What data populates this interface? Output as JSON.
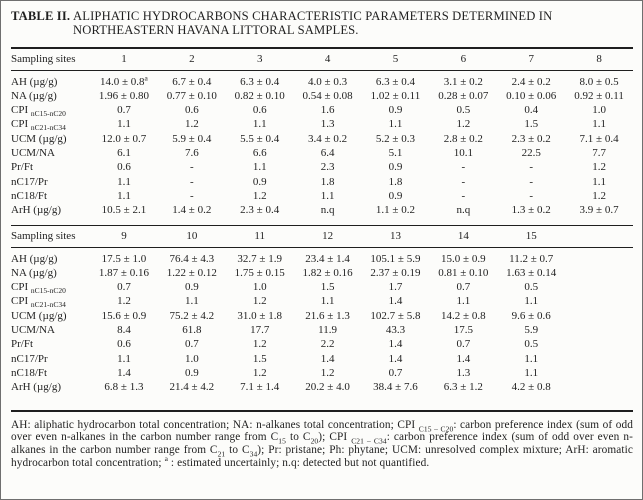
{
  "page": {
    "background": "#fcfcfa",
    "text_color": "#1f1f1f",
    "border_color": "#6f6f6f"
  },
  "title": {
    "label": "TABLE II.",
    "caption": "ALIPHATIC HYDROCARBONS CHARACTERISTIC PARAMETERS DETERMINED IN NORTHEASTERN HAVANA LITTORAL SAMPLES."
  },
  "tables": [
    {
      "header_label": "Sampling sites",
      "columns": [
        "1",
        "2",
        "3",
        "4",
        "5",
        "6",
        "7",
        "8"
      ],
      "rows": [
        {
          "label": "AH (µg/g)",
          "values": [
            "14.0 ± 0.8^{a}",
            "6.7 ± 0.4",
            "6.3 ± 0.4",
            "4.0 ± 0.3",
            "6.3 ± 0.4",
            "3.1 ± 0.2",
            "2.4 ± 0.2",
            "8.0 ± 0.5"
          ]
        },
        {
          "label": "NA (µg/g)",
          "values": [
            "1.96 ± 0.80",
            "0.77 ± 0.10",
            "0.82 ± 0.10",
            "0.54 ± 0.08",
            "1.02 ± 0.11",
            "0.28 ± 0.07",
            "0.10 ± 0.06",
            "0.92 ± 0.11"
          ]
        },
        {
          "label": "CPI _{nC15-nC20}",
          "values": [
            "0.7",
            "0.6",
            "0.6",
            "1.6",
            "0.9",
            "0.5",
            "0.4",
            "1.0"
          ]
        },
        {
          "label": "CPI _{nC21-nC34}",
          "values": [
            "1.1",
            "1.2",
            "1.1",
            "1.3",
            "1.1",
            "1.2",
            "1.5",
            "1.1"
          ]
        },
        {
          "label": "UCM (µg/g)",
          "values": [
            "12.0 ± 0.7",
            "5.9 ± 0.4",
            "5.5 ± 0.4",
            "3.4 ± 0.2",
            "5.2 ± 0.3",
            "2.8 ± 0.2",
            "2.3 ± 0.2",
            "7.1 ± 0.4"
          ]
        },
        {
          "label": "UCM/NA",
          "values": [
            "6.1",
            "7.6",
            "6.6",
            "6.4",
            "5.1",
            "10.1",
            "22.5",
            "7.7"
          ]
        },
        {
          "label": "Pr/Ft",
          "values": [
            "0.6",
            "-",
            "1.1",
            "2.3",
            "0.9",
            "-",
            "-",
            "1.2"
          ]
        },
        {
          "label": "nC17/Pr",
          "values": [
            "1.1",
            "-",
            "0.9",
            "1.8",
            "1.8",
            "-",
            "-",
            "1.1"
          ]
        },
        {
          "label": "nC18/Ft",
          "values": [
            "1.1",
            "-",
            "1.2",
            "1.1",
            "0.9",
            "-",
            "-",
            "1.2"
          ]
        },
        {
          "label": "ArH (µg/g)",
          "values": [
            "10.5 ± 2.1",
            "1.4 ± 0.2",
            "2.3 ± 0.4",
            "n.q",
            "1.1 ± 0.2",
            "n.q",
            "1.3 ± 0.2",
            "3.9 ± 0.7"
          ]
        }
      ]
    },
    {
      "header_label": "Sampling sites",
      "columns": [
        "9",
        "10",
        "11",
        "12",
        "13",
        "14",
        "15"
      ],
      "rows": [
        {
          "label": "AH (µg/g)",
          "values": [
            "17.5 ± 1.0",
            "76.4 ± 4.3",
            "32.7 ± 1.9",
            "23.4 ± 1.4",
            "105.1 ± 5.9",
            "15.0 ± 0.9",
            "11.2 ± 0.7"
          ]
        },
        {
          "label": "NA (µg/g)",
          "values": [
            "1.87 ± 0.16",
            "1.22 ± 0.12",
            "1.75 ± 0.15",
            "1.82 ± 0.16",
            "2.37 ± 0.19",
            "0.81 ± 0.10",
            "1.63 ± 0.14"
          ]
        },
        {
          "label": "CPI _{nC15-nC20}",
          "values": [
            "0.7",
            "0.9",
            "1.0",
            "1.5",
            "1.7",
            "0.7",
            "0.5"
          ]
        },
        {
          "label": "CPI _{nC21-nC34}",
          "values": [
            "1.2",
            "1.1",
            "1.2",
            "1.1",
            "1.4",
            "1.1",
            "1.1"
          ]
        },
        {
          "label": "UCM (µg/g)",
          "values": [
            "15.6 ± 0.9",
            "75.2 ± 4.2",
            "31.0 ± 1.8",
            "21.6 ± 1.3",
            "102.7 ± 5.8",
            "14.2 ± 0.8",
            "9.6 ± 0.6"
          ]
        },
        {
          "label": "UCM/NA",
          "values": [
            "8.4",
            "61.8",
            "17.7",
            "11.9",
            "43.3",
            "17.5",
            "5.9"
          ]
        },
        {
          "label": "Pr/Ft",
          "values": [
            "0.6",
            "0.7",
            "1.2",
            "2.2",
            "1.4",
            "0.7",
            "0.5"
          ]
        },
        {
          "label": "nC17/Pr",
          "values": [
            "1.1",
            "1.0",
            "1.5",
            "1.4",
            "1.4",
            "1.4",
            "1.1"
          ]
        },
        {
          "label": "nC18/Ft",
          "values": [
            "1.4",
            "0.9",
            "1.2",
            "1.2",
            "0.7",
            "1.3",
            "1.1"
          ]
        },
        {
          "label": "ArH (µg/g)",
          "values": [
            "6.8 ± 1.3",
            "21.4 ± 4.2",
            "7.1 ± 1.4",
            "20.2 ± 4.0",
            "38.4 ± 7.6",
            "6.3 ± 1.2",
            "4.2 ± 0.8"
          ]
        }
      ]
    }
  ],
  "footnote": "AH: aliphatic hydrocarbon total concentration; NA: n-alkanes total concentration; CPI _{C15 – C20}: carbon preference index (sum of odd over even n-alkanes in the carbon number range from C_{15} to C_{20}); CPI _{C21 – C34}: carbon preference index (sum of odd over even n-alkanes in the carbon number range from C_{21} to C_{34}); Pr: pristane; Ph: phytane; UCM: unresolved complex mixture; ArH: aromatic hydrocarbon total concentration; ^{a} : estimated uncertainly; n.q: detected but not quantified."
}
